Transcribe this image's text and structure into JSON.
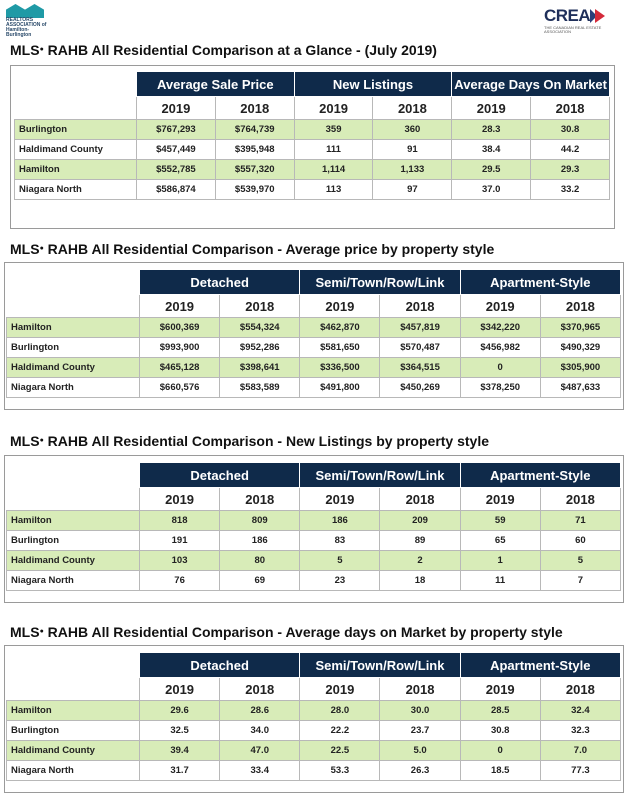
{
  "header": {
    "left_logo_text": "REALTORS ASSOCIATION of Hamilton-Burlington",
    "right_logo_text": "CREA",
    "right_logo_sub": "THE CANADIAN REAL ESTATE ASSOCIATION"
  },
  "t1": {
    "title_pre": "MLS",
    "title_post": " RAHB All Residential Comparison at a Glance - (July 2019)",
    "groups": [
      "Average Sale Price",
      "New Listings",
      "Average Days On Market"
    ],
    "years": [
      "2019",
      "2018",
      "2019",
      "2018",
      "2019",
      "2018"
    ],
    "rows": [
      {
        "label": "Burlington",
        "cells": [
          "$767,293",
          "$764,739",
          "359",
          "360",
          "28.3",
          "30.8"
        ]
      },
      {
        "label": "Haldimand County",
        "cells": [
          "$457,449",
          "$395,948",
          "111",
          "91",
          "38.4",
          "44.2"
        ]
      },
      {
        "label": "Hamilton",
        "cells": [
          "$552,785",
          "$557,320",
          "1,114",
          "1,133",
          "29.5",
          "29.3"
        ]
      },
      {
        "label": "Niagara North",
        "cells": [
          "$586,874",
          "$539,970",
          "113",
          "97",
          "37.0",
          "33.2"
        ]
      }
    ]
  },
  "t2": {
    "title_pre": "MLS",
    "title_post": " RAHB All Residential Comparison - Average price by property style",
    "groups": [
      "Detached",
      "Semi/Town/Row/Link",
      "Apartment-Style"
    ],
    "years": [
      "2019",
      "2018",
      "2019",
      "2018",
      "2019",
      "2018"
    ],
    "rows": [
      {
        "label": "Hamilton",
        "cells": [
          "$600,369",
          "$554,324",
          "$462,870",
          "$457,819",
          "$342,220",
          "$370,965"
        ]
      },
      {
        "label": "Burlington",
        "cells": [
          "$993,900",
          "$952,286",
          "$581,650",
          "$570,487",
          "$456,982",
          "$490,329"
        ]
      },
      {
        "label": "Haldimand County",
        "cells": [
          "$465,128",
          "$398,641",
          "$336,500",
          "$364,515",
          "0",
          "$305,900"
        ]
      },
      {
        "label": "Niagara North",
        "cells": [
          "$660,576",
          "$583,589",
          "$491,800",
          "$450,269",
          "$378,250",
          "$487,633"
        ]
      }
    ]
  },
  "t3": {
    "title_pre": "MLS",
    "title_post": " RAHB All Residential Comparison - New Listings by property style",
    "groups": [
      "Detached",
      "Semi/Town/Row/Link",
      "Apartment-Style"
    ],
    "years": [
      "2019",
      "2018",
      "2019",
      "2018",
      "2019",
      "2018"
    ],
    "rows": [
      {
        "label": "Hamilton",
        "cells": [
          "818",
          "809",
          "186",
          "209",
          "59",
          "71"
        ]
      },
      {
        "label": "Burlington",
        "cells": [
          "191",
          "186",
          "83",
          "89",
          "65",
          "60"
        ]
      },
      {
        "label": "Haldimand County",
        "cells": [
          "103",
          "80",
          "5",
          "2",
          "1",
          "5"
        ]
      },
      {
        "label": "Niagara North",
        "cells": [
          "76",
          "69",
          "23",
          "18",
          "11",
          "7"
        ]
      }
    ]
  },
  "t4": {
    "title_pre": "MLS",
    "title_post": " RAHB All Residential Comparison - Average days on Market by property style",
    "groups": [
      "Detached",
      "Semi/Town/Row/Link",
      "Apartment-Style"
    ],
    "years": [
      "2019",
      "2018",
      "2019",
      "2018",
      "2019",
      "2018"
    ],
    "rows": [
      {
        "label": "Hamilton",
        "cells": [
          "29.6",
          "28.6",
          "28.0",
          "30.0",
          "28.5",
          "32.4"
        ]
      },
      {
        "label": "Burlington",
        "cells": [
          "32.5",
          "34.0",
          "22.2",
          "23.7",
          "30.8",
          "32.3"
        ]
      },
      {
        "label": "Haldimand County",
        "cells": [
          "39.4",
          "47.0",
          "22.5",
          "5.0",
          "0",
          "7.0"
        ]
      },
      {
        "label": "Niagara North",
        "cells": [
          "31.7",
          "33.4",
          "53.3",
          "26.3",
          "18.5",
          "77.3"
        ]
      }
    ]
  },
  "colors": {
    "header_bg": "#0f2a4a",
    "row_green": "#d8ecb8"
  }
}
